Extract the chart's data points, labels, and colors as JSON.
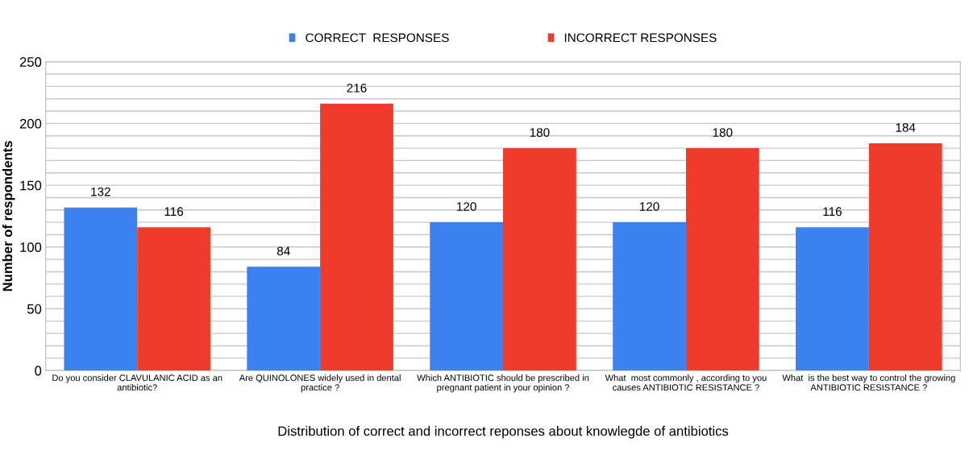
{
  "chart_data": {
    "type": "bar",
    "xlabel": "Distribution of correct and incorrect reponses about knowlegde of antibiotics",
    "ylabel": "Number of respondents",
    "categories": [
      "Do you consider CLAVULANIC ACID as an\nantibiotic?",
      "Are QUINOLONES widely used in dental\npractice ?",
      "Which ANTIBIOTIC should be prescribed in\npregnant patient in your opinion ?",
      "What  most commonly , according to you\ncauses ANTIBIOTIC RESISTANCE ?",
      "What  is the best way to control the growing\nANTIBIOTIC RESISTANCE ?"
    ],
    "series": [
      {
        "name": "CORRECT  RESPONSES",
        "color": "#3b82f0",
        "values": [
          132,
          84,
          120,
          120,
          116
        ]
      },
      {
        "name": "INCORRECT RESPONSES",
        "color": "#ef3b2c",
        "values": [
          116,
          216,
          180,
          180,
          184
        ]
      }
    ],
    "ylim": [
      0,
      250
    ],
    "yticks": [
      0,
      {
        "value": 10,
        "label": null
      },
      {
        "value": 20,
        "label": null
      },
      {
        "value": 30,
        "label": null
      },
      {
        "value": 40,
        "label": null
      },
      50,
      {
        "value": 60,
        "label": null
      },
      {
        "value": 70,
        "label": null
      },
      {
        "value": 80,
        "label": null
      },
      {
        "value": 90,
        "label": null
      },
      100,
      {
        "value": 110,
        "label": null
      },
      {
        "value": 120,
        "label": null
      },
      {
        "value": 130,
        "label": null
      },
      {
        "value": 140,
        "label": null
      },
      150,
      {
        "value": 160,
        "label": null
      },
      {
        "value": 170,
        "label": null
      },
      {
        "value": 180,
        "label": null
      },
      {
        "value": 190,
        "label": null
      },
      200,
      {
        "value": 210,
        "label": null
      },
      {
        "value": 220,
        "label": null
      },
      {
        "value": 230,
        "label": null
      },
      {
        "value": 240,
        "label": null
      },
      250
    ],
    "grid": "y",
    "legend": "top",
    "data_labels": true
  }
}
